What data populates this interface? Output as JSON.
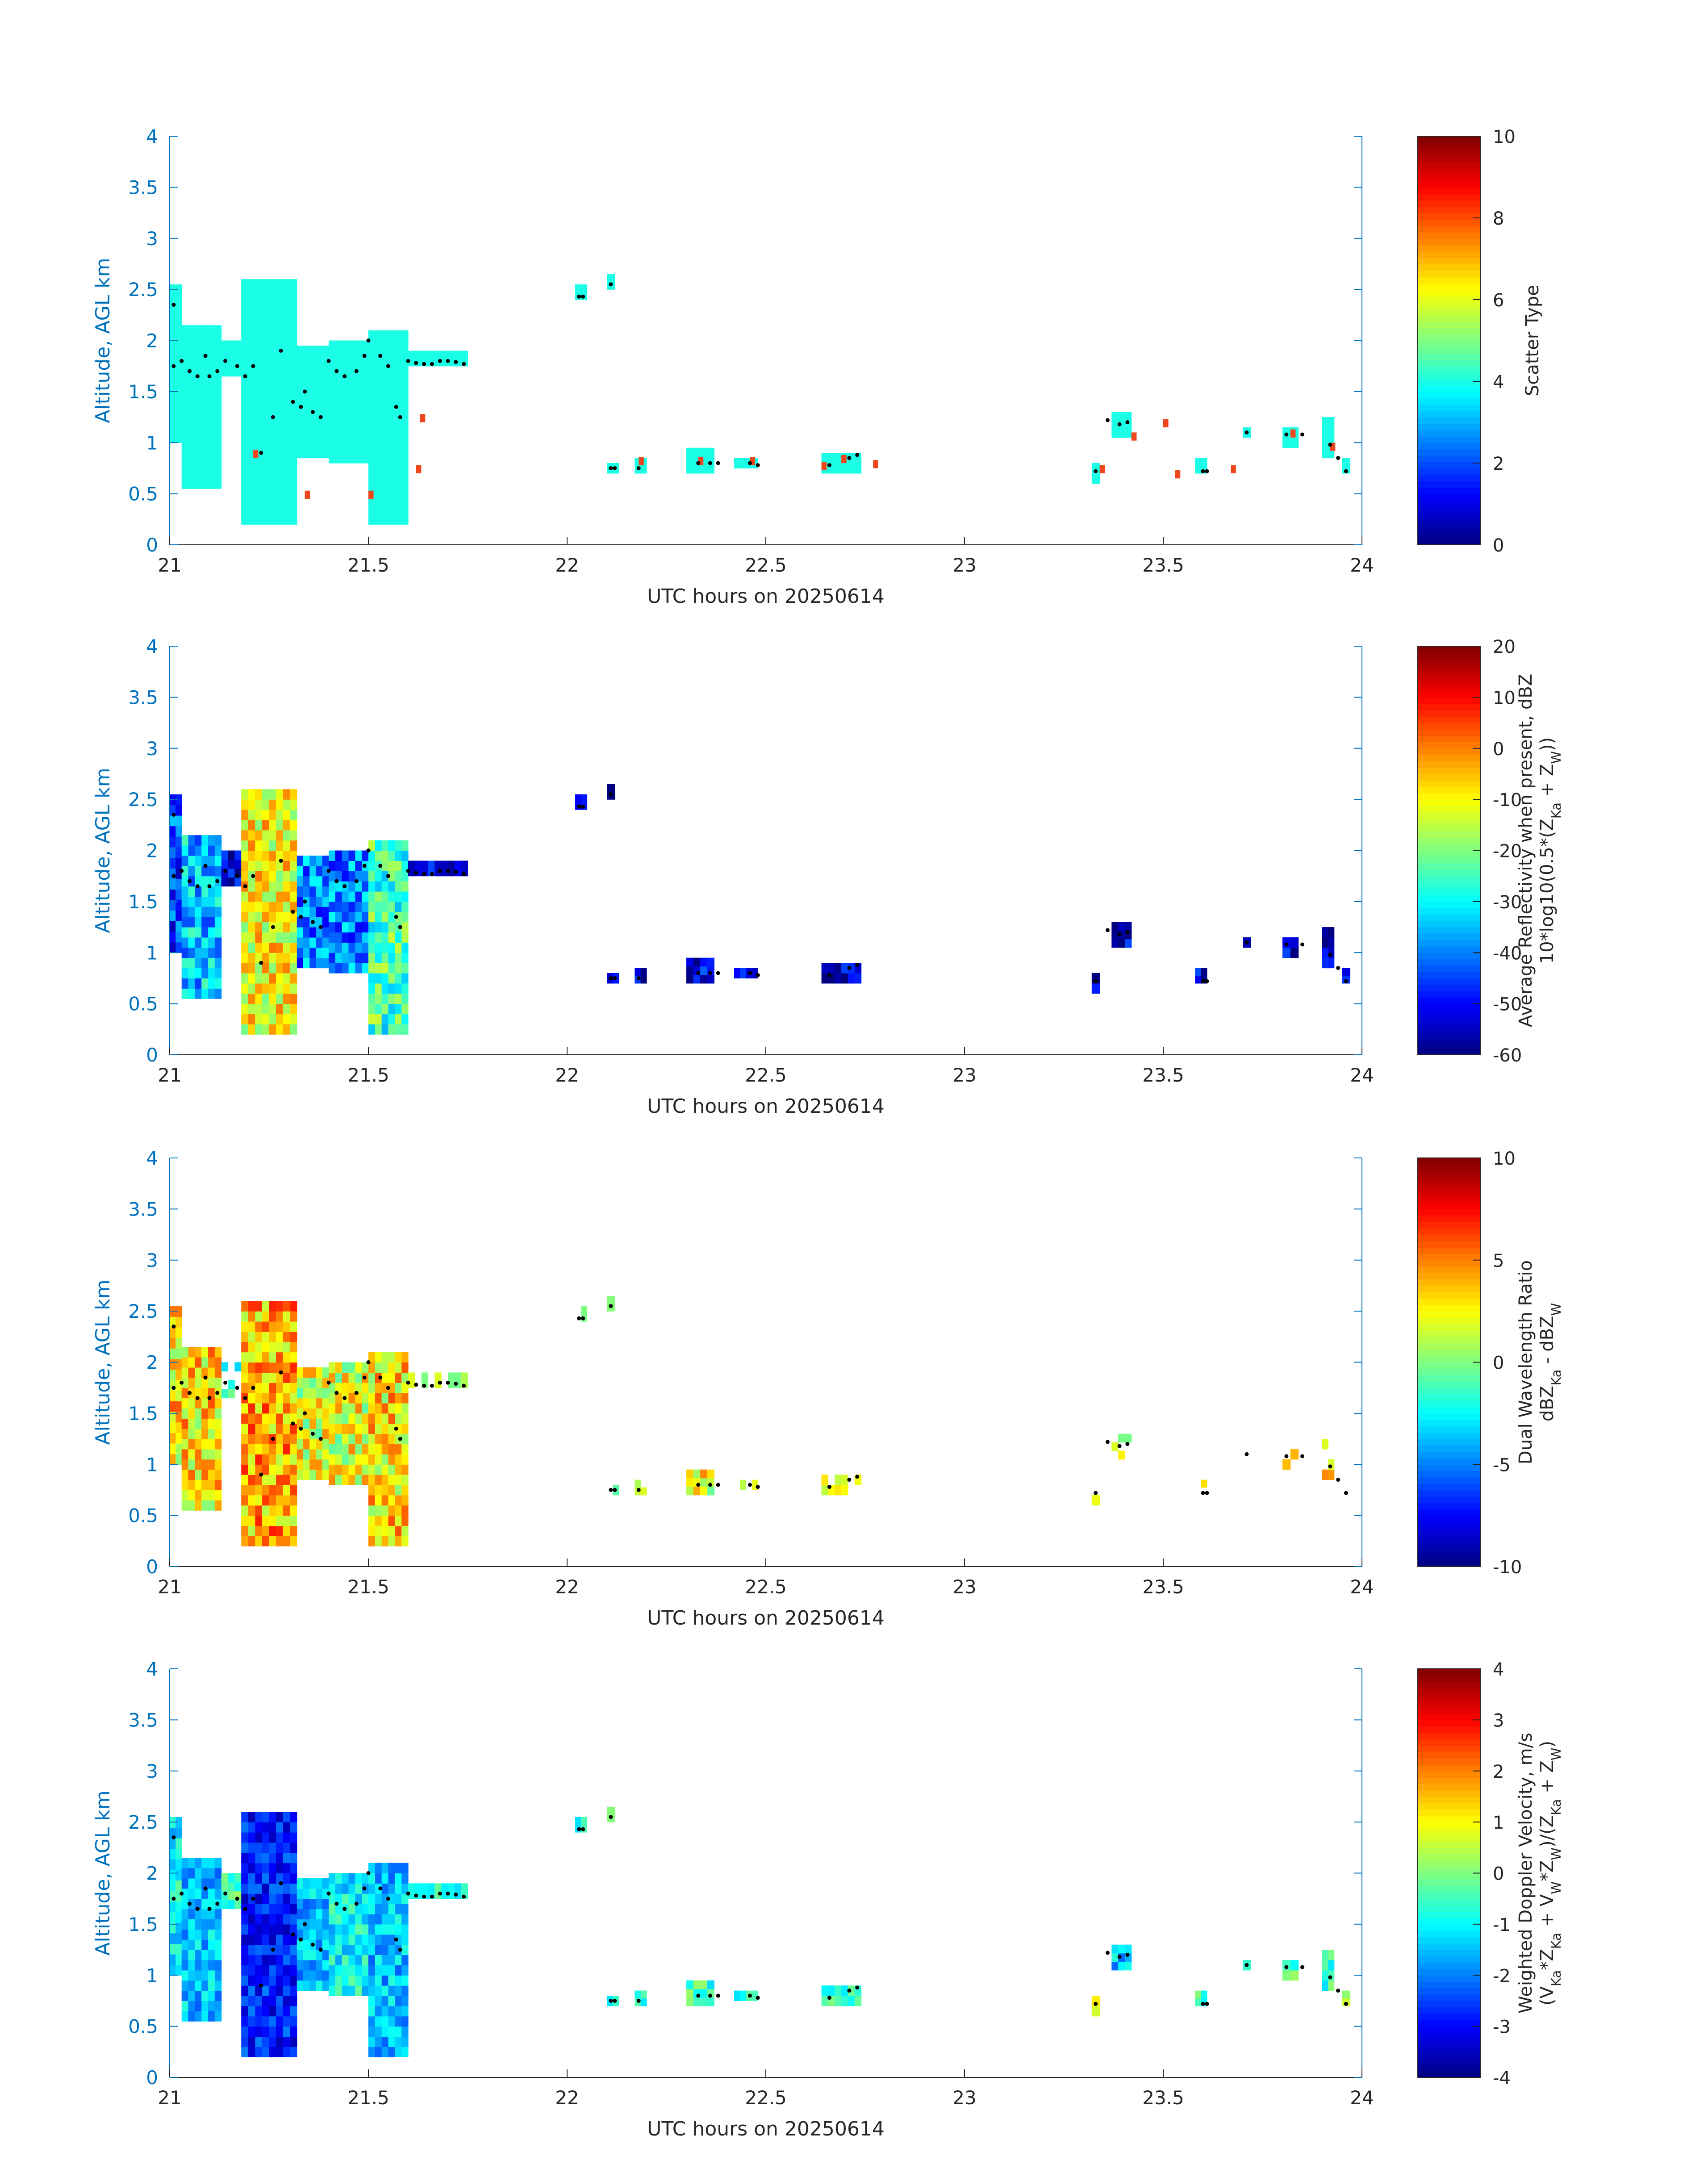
{
  "chart_data": [
    {
      "type": "heatmap",
      "xlabel": "UTC hours on 20250614",
      "ylabel": "Altitude, AGL km",
      "xlim": [
        21,
        24
      ],
      "ylim": [
        0,
        4
      ],
      "x_ticks": [
        "21",
        "21.5",
        "22",
        "22.5",
        "23",
        "23.5",
        "24"
      ],
      "y_ticks": [
        "0",
        "0.5",
        "1",
        "1.5",
        "2",
        "2.5",
        "3",
        "3.5",
        "4"
      ],
      "colorbar": {
        "label_lines": [
          "Scatter Type"
        ],
        "range": [
          0,
          10
        ],
        "ticks": [
          "0",
          "2",
          "4",
          "6",
          "8",
          "10"
        ],
        "colormap": "jet"
      },
      "fill": "scatter"
    },
    {
      "type": "heatmap",
      "xlabel": "UTC hours on 20250614",
      "ylabel": "Altitude, AGL km",
      "xlim": [
        21,
        24
      ],
      "ylim": [
        0,
        4
      ],
      "x_ticks": [
        "21",
        "21.5",
        "22",
        "22.5",
        "23",
        "23.5",
        "24"
      ],
      "y_ticks": [
        "0",
        "0.5",
        "1",
        "1.5",
        "2",
        "2.5",
        "3",
        "3.5",
        "4"
      ],
      "colorbar": {
        "label_lines": [
          "Average Reflectivity when present, dBZ",
          "10*log10(0.5*(Z_Ka + Z_W))"
        ],
        "range": [
          -60,
          20
        ],
        "ticks": [
          "-60",
          "-50",
          "-40",
          "-30",
          "-20",
          "-10",
          "0",
          "10",
          "20"
        ],
        "colormap": "jet"
      },
      "fill": "reflectivity"
    },
    {
      "type": "heatmap",
      "xlabel": "UTC hours on 20250614",
      "ylabel": "Altitude, AGL km",
      "xlim": [
        21,
        24
      ],
      "ylim": [
        0,
        4
      ],
      "x_ticks": [
        "21",
        "21.5",
        "22",
        "22.5",
        "23",
        "23.5",
        "24"
      ],
      "y_ticks": [
        "0",
        "0.5",
        "1",
        "1.5",
        "2",
        "2.5",
        "3",
        "3.5",
        "4"
      ],
      "colorbar": {
        "label_lines": [
          "Dual Wavelength Ratio",
          "dBZ_Ka - dBZ_W"
        ],
        "range": [
          -10,
          10
        ],
        "ticks": [
          "-10",
          "-5",
          "0",
          "5",
          "10"
        ],
        "colormap": "jet"
      },
      "fill": "dwr"
    },
    {
      "type": "heatmap",
      "xlabel": "UTC hours on 20250614",
      "ylabel": "Altitude, AGL km",
      "xlim": [
        21,
        24
      ],
      "ylim": [
        0,
        4
      ],
      "x_ticks": [
        "21",
        "21.5",
        "22",
        "22.5",
        "23",
        "23.5",
        "24"
      ],
      "y_ticks": [
        "0",
        "0.5",
        "1",
        "1.5",
        "2",
        "2.5",
        "3",
        "3.5",
        "4"
      ],
      "colorbar": {
        "label_lines": [
          "Weighted Doppler Velocity, m/s",
          "(V_Ka*Z_Ka + V_W*Z_W)/(Z_Ka + Z_W)"
        ],
        "range": [
          -4,
          4
        ],
        "ticks": [
          "-4",
          "-3",
          "-2",
          "-1",
          "0",
          "1",
          "2",
          "3",
          "4"
        ],
        "colormap": "jet"
      },
      "fill": "velocity"
    }
  ],
  "cloud_regions": [
    {
      "x0": 21.0,
      "x1": 21.03,
      "y0": 1.0,
      "y1": 2.55,
      "scatter": 4,
      "refl": -45,
      "dwr": 3,
      "vel": -1.0
    },
    {
      "x0": 21.03,
      "x1": 21.13,
      "y0": 0.55,
      "y1": 2.15,
      "scatter": 4,
      "refl": -35,
      "dwr": 3,
      "vel": -1.5
    },
    {
      "x0": 21.13,
      "x1": 21.18,
      "y0": 1.65,
      "y1": 2.0,
      "scatter": 4,
      "refl": -55,
      "dwr": -3,
      "vel": -0.5
    },
    {
      "x0": 21.18,
      "x1": 21.32,
      "y0": 0.2,
      "y1": 2.6,
      "scatter": 4,
      "refl": -10,
      "dwr": 4,
      "vel": -2.8
    },
    {
      "x0": 21.32,
      "x1": 21.4,
      "y0": 0.85,
      "y1": 1.95,
      "scatter": 4,
      "refl": -40,
      "dwr": 2,
      "vel": -1.5
    },
    {
      "x0": 21.4,
      "x1": 21.5,
      "y0": 0.8,
      "y1": 2.0,
      "scatter": 4,
      "refl": -40,
      "dwr": 2,
      "vel": -1.0
    },
    {
      "x0": 21.5,
      "x1": 21.6,
      "y0": 0.2,
      "y1": 2.1,
      "scatter": 4,
      "refl": -25,
      "dwr": 3,
      "vel": -1.5
    },
    {
      "x0": 21.6,
      "x1": 21.75,
      "y0": 1.75,
      "y1": 1.9,
      "scatter": 4,
      "refl": -55,
      "dwr": -1,
      "vel": -0.5
    },
    {
      "x0": 22.02,
      "x1": 22.05,
      "y0": 2.4,
      "y1": 2.55,
      "scatter": 4,
      "refl": -55,
      "dwr": 0,
      "vel": -0.5
    },
    {
      "x0": 22.1,
      "x1": 22.12,
      "y0": 2.5,
      "y1": 2.65,
      "scatter": 4,
      "refl": -55,
      "dwr": 0,
      "vel": -0.5
    },
    {
      "x0": 22.1,
      "x1": 22.13,
      "y0": 0.7,
      "y1": 0.8,
      "scatter": 4,
      "refl": -55,
      "dwr": -1,
      "vel": -0.5
    },
    {
      "x0": 22.17,
      "x1": 22.2,
      "y0": 0.7,
      "y1": 0.85,
      "scatter": 4,
      "refl": -55,
      "dwr": -1,
      "vel": -0.5
    },
    {
      "x0": 22.3,
      "x1": 22.37,
      "y0": 0.7,
      "y1": 0.95,
      "scatter": 4,
      "refl": -50,
      "dwr": 2,
      "vel": -0.5
    },
    {
      "x0": 22.42,
      "x1": 22.48,
      "y0": 0.75,
      "y1": 0.85,
      "scatter": 4,
      "refl": -55,
      "dwr": 1,
      "vel": -0.5
    },
    {
      "x0": 22.64,
      "x1": 22.74,
      "y0": 0.7,
      "y1": 0.9,
      "scatter": 4,
      "refl": -55,
      "dwr": 1,
      "vel": -0.5
    },
    {
      "x0": 23.32,
      "x1": 23.34,
      "y0": 0.6,
      "y1": 0.8,
      "scatter": 4,
      "refl": -55,
      "dwr": 2,
      "vel": 0.5
    },
    {
      "x0": 23.37,
      "x1": 23.42,
      "y0": 1.05,
      "y1": 1.3,
      "scatter": 4,
      "refl": -55,
      "dwr": 0,
      "vel": -1.5
    },
    {
      "x0": 23.58,
      "x1": 23.61,
      "y0": 0.7,
      "y1": 0.85,
      "scatter": 4,
      "refl": -55,
      "dwr": 2,
      "vel": -0.5
    },
    {
      "x0": 23.7,
      "x1": 23.72,
      "y0": 1.05,
      "y1": 1.15,
      "scatter": 4,
      "refl": -55,
      "dwr": 1,
      "vel": -0.5
    },
    {
      "x0": 23.8,
      "x1": 23.84,
      "y0": 0.95,
      "y1": 1.15,
      "scatter": 4,
      "refl": -55,
      "dwr": 3,
      "vel": -0.5
    },
    {
      "x0": 23.9,
      "x1": 23.93,
      "y0": 0.85,
      "y1": 1.25,
      "scatter": 4,
      "refl": -55,
      "dwr": 2,
      "vel": -0.5
    },
    {
      "x0": 23.95,
      "x1": 23.97,
      "y0": 0.7,
      "y1": 0.85,
      "scatter": 4,
      "refl": -55,
      "dwr": 1,
      "vel": 0.5
    }
  ],
  "orange_cells": [
    {
      "x": 21.21,
      "y": 0.85
    },
    {
      "x": 21.34,
      "y": 0.45
    },
    {
      "x": 21.5,
      "y": 0.45
    },
    {
      "x": 21.62,
      "y": 0.7
    },
    {
      "x": 21.63,
      "y": 1.2
    },
    {
      "x": 22.18,
      "y": 0.78
    },
    {
      "x": 22.33,
      "y": 0.78
    },
    {
      "x": 22.46,
      "y": 0.78
    },
    {
      "x": 22.64,
      "y": 0.73
    },
    {
      "x": 22.69,
      "y": 0.8
    },
    {
      "x": 22.77,
      "y": 0.75
    },
    {
      "x": 23.34,
      "y": 0.7
    },
    {
      "x": 23.42,
      "y": 1.02
    },
    {
      "x": 23.5,
      "y": 1.15
    },
    {
      "x": 23.53,
      "y": 0.65
    },
    {
      "x": 23.67,
      "y": 0.7
    },
    {
      "x": 23.82,
      "y": 1.05
    },
    {
      "x": 23.92,
      "y": 0.92
    }
  ],
  "cloud_base_points": [
    {
      "x": 21.01,
      "y": 2.35
    },
    {
      "x": 21.01,
      "y": 1.75
    },
    {
      "x": 21.03,
      "y": 1.8
    },
    {
      "x": 21.05,
      "y": 1.7
    },
    {
      "x": 21.07,
      "y": 1.65
    },
    {
      "x": 21.09,
      "y": 1.85
    },
    {
      "x": 21.1,
      "y": 1.65
    },
    {
      "x": 21.12,
      "y": 1.7
    },
    {
      "x": 21.14,
      "y": 1.8
    },
    {
      "x": 21.17,
      "y": 1.75
    },
    {
      "x": 21.19,
      "y": 1.65
    },
    {
      "x": 21.21,
      "y": 1.75
    },
    {
      "x": 21.23,
      "y": 0.9
    },
    {
      "x": 21.26,
      "y": 1.25
    },
    {
      "x": 21.28,
      "y": 1.9
    },
    {
      "x": 21.31,
      "y": 1.4
    },
    {
      "x": 21.33,
      "y": 1.35
    },
    {
      "x": 21.34,
      "y": 1.5
    },
    {
      "x": 21.36,
      "y": 1.3
    },
    {
      "x": 21.38,
      "y": 1.25
    },
    {
      "x": 21.4,
      "y": 1.8
    },
    {
      "x": 21.42,
      "y": 1.7
    },
    {
      "x": 21.44,
      "y": 1.65
    },
    {
      "x": 21.47,
      "y": 1.7
    },
    {
      "x": 21.49,
      "y": 1.85
    },
    {
      "x": 21.5,
      "y": 2.0
    },
    {
      "x": 21.53,
      "y": 1.85
    },
    {
      "x": 21.55,
      "y": 1.75
    },
    {
      "x": 21.57,
      "y": 1.35
    },
    {
      "x": 21.58,
      "y": 1.25
    },
    {
      "x": 21.6,
      "y": 1.8
    },
    {
      "x": 21.62,
      "y": 1.78
    },
    {
      "x": 21.64,
      "y": 1.77
    },
    {
      "x": 21.66,
      "y": 1.77
    },
    {
      "x": 21.68,
      "y": 1.8
    },
    {
      "x": 21.7,
      "y": 1.8
    },
    {
      "x": 21.72,
      "y": 1.79
    },
    {
      "x": 21.74,
      "y": 1.77
    },
    {
      "x": 22.03,
      "y": 2.43
    },
    {
      "x": 22.04,
      "y": 2.43
    },
    {
      "x": 22.11,
      "y": 2.55
    },
    {
      "x": 22.11,
      "y": 0.75
    },
    {
      "x": 22.12,
      "y": 0.75
    },
    {
      "x": 22.18,
      "y": 0.75
    },
    {
      "x": 22.33,
      "y": 0.8
    },
    {
      "x": 22.36,
      "y": 0.8
    },
    {
      "x": 22.38,
      "y": 0.8
    },
    {
      "x": 22.46,
      "y": 0.8
    },
    {
      "x": 22.48,
      "y": 0.78
    },
    {
      "x": 22.66,
      "y": 0.78
    },
    {
      "x": 22.71,
      "y": 0.85
    },
    {
      "x": 22.73,
      "y": 0.88
    },
    {
      "x": 23.33,
      "y": 0.72
    },
    {
      "x": 23.36,
      "y": 1.22
    },
    {
      "x": 23.39,
      "y": 1.18
    },
    {
      "x": 23.41,
      "y": 1.2
    },
    {
      "x": 23.6,
      "y": 0.72
    },
    {
      "x": 23.61,
      "y": 0.72
    },
    {
      "x": 23.71,
      "y": 1.1
    },
    {
      "x": 23.81,
      "y": 1.08
    },
    {
      "x": 23.85,
      "y": 1.08
    },
    {
      "x": 23.92,
      "y": 0.98
    },
    {
      "x": 23.94,
      "y": 0.85
    },
    {
      "x": 23.96,
      "y": 0.72
    }
  ]
}
